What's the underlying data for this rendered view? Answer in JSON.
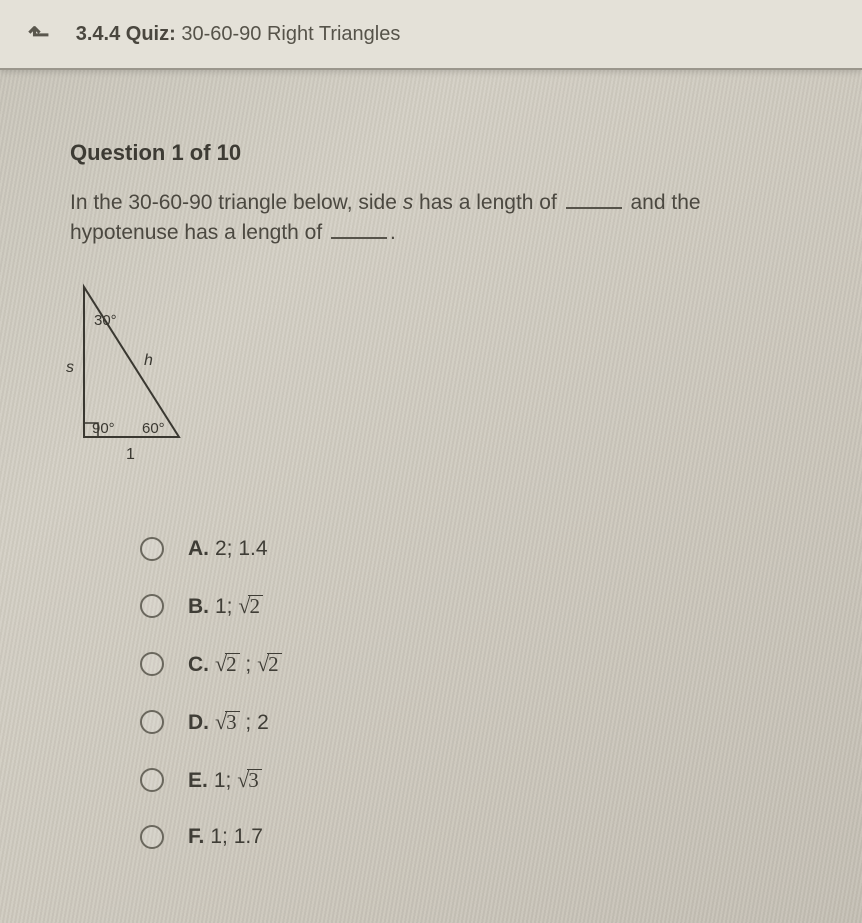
{
  "topbar": {
    "section_number": "3.4.4",
    "quiz_label": "Quiz:",
    "quiz_title": "30-60-90 Right Triangles"
  },
  "question": {
    "counter": "Question 1 of 10",
    "prompt_pre": "In the 30-60-90 triangle below, side ",
    "prompt_var": "s",
    "prompt_mid1": " has a length of ",
    "prompt_mid2": " and the hypotenuse has a length of ",
    "prompt_end": "."
  },
  "triangle": {
    "angle_top": "30°",
    "angle_bl": "90°",
    "angle_br": "60°",
    "side_left": "s",
    "side_hyp": "h",
    "side_bottom": "1",
    "stroke": "#3a3831",
    "text_color": "#3a3831"
  },
  "options": [
    {
      "letter": "A.",
      "parts": [
        {
          "t": "plain",
          "v": "2; 1.4"
        }
      ]
    },
    {
      "letter": "B.",
      "parts": [
        {
          "t": "plain",
          "v": "1; "
        },
        {
          "t": "sqrt",
          "v": "2"
        }
      ]
    },
    {
      "letter": "C.",
      "parts": [
        {
          "t": "sqrt",
          "v": "2"
        },
        {
          "t": "plain",
          "v": " ; "
        },
        {
          "t": "sqrt",
          "v": "2"
        }
      ]
    },
    {
      "letter": "D.",
      "parts": [
        {
          "t": "sqrt",
          "v": "3"
        },
        {
          "t": "plain",
          "v": " ; 2"
        }
      ]
    },
    {
      "letter": "E.",
      "parts": [
        {
          "t": "plain",
          "v": "1; "
        },
        {
          "t": "sqrt",
          "v": "3"
        }
      ]
    },
    {
      "letter": "F.",
      "parts": [
        {
          "t": "plain",
          "v": "1; 1.7"
        }
      ]
    }
  ],
  "colors": {
    "text": "#3f3d36",
    "border": "#6a675d"
  }
}
